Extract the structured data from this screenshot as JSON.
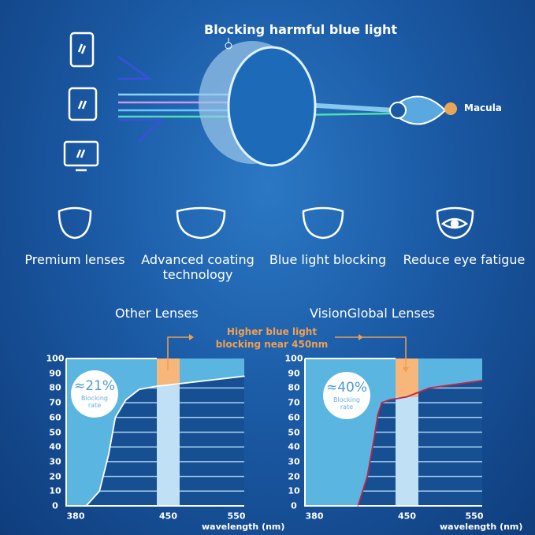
{
  "header": {
    "title": "Blocking harmful blue light",
    "macula_label": "Macula"
  },
  "features": [
    {
      "icon": "lens-icon",
      "label": "Premium lenses"
    },
    {
      "icon": "coated-lens-icon",
      "label": "Advanced coating technology"
    },
    {
      "icon": "blue-light-lens-icon",
      "label": "Blue light blocking"
    },
    {
      "icon": "eye-lens-icon",
      "label": "Reduce eye fatigue"
    }
  ],
  "annotation": "Higher blue light blocking near 450nm",
  "colors": {
    "accent": "#f0a050",
    "fill_light": "#5ab6e0",
    "band": "#bfe0f5",
    "band_top": "#f8b77a",
    "curve_right": "#c0254a"
  },
  "chart_data": [
    {
      "type": "area",
      "title": "Other Lenses",
      "badge_value": "≈21%",
      "badge_label": "Blocking rate",
      "xlabel": "wavelength (nm)",
      "x_ticks": [
        "380",
        "450",
        "550"
      ],
      "y_ticks": [
        "0",
        "10",
        "20",
        "30",
        "40",
        "50",
        "60",
        "70",
        "80",
        "90",
        "100"
      ],
      "ylim": [
        0,
        100
      ],
      "highlight_band_nm": 450,
      "x": [
        388,
        398,
        405,
        410,
        418,
        428,
        440,
        450,
        550
      ],
      "y": [
        0,
        10,
        35,
        60,
        72,
        79,
        81,
        82,
        88
      ]
    },
    {
      "type": "area",
      "title": "VisionGlobal Lenses",
      "badge_value": "≈40%",
      "badge_label": "Blocking rate",
      "xlabel": "wavelength (nm)",
      "x_ticks": [
        "380",
        "450",
        "550"
      ],
      "y_ticks": [
        "0",
        "10",
        "20",
        "30",
        "40",
        "50",
        "60",
        "70",
        "80",
        "90",
        "100"
      ],
      "ylim": [
        0,
        100
      ],
      "highlight_band_nm": 450,
      "x": [
        413,
        420,
        425,
        428,
        431,
        437,
        450,
        460,
        480,
        550
      ],
      "y": [
        0,
        20,
        45,
        62,
        70,
        72,
        74,
        76,
        80,
        85
      ]
    }
  ]
}
